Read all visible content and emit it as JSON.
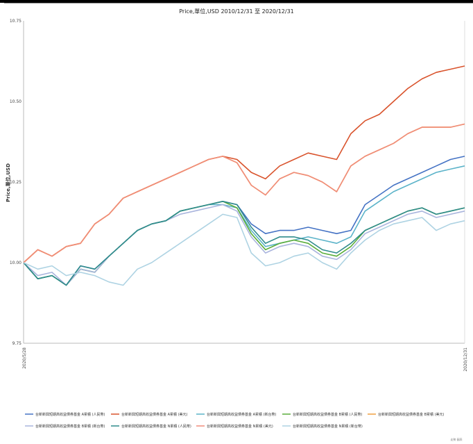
{
  "chart_data": {
    "type": "line",
    "title": "Price,單位,USD 2010/12/31 至 2020/12/31",
    "ylabel": "Price,單位,USD",
    "ylim": [
      9.75,
      10.75
    ],
    "yticks": [
      "9.75",
      "10.00",
      "10.25",
      "10.50",
      "10.75"
    ],
    "x_start_label": "2020/5/28",
    "x_end_label": "2020/12/31",
    "n_points": 32,
    "grid": false,
    "legend_placement": "bottom",
    "series": [
      {
        "name": "台新新興短期高收益債券基金 A累積 (人民幣)",
        "color": "#4472c4",
        "values": [
          10.0,
          9.95,
          9.96,
          9.93,
          9.99,
          9.98,
          10.02,
          10.06,
          10.1,
          10.12,
          10.13,
          10.16,
          10.17,
          10.18,
          10.19,
          10.18,
          10.12,
          10.09,
          10.1,
          10.1,
          10.11,
          10.1,
          10.09,
          10.1,
          10.18,
          10.21,
          10.24,
          10.26,
          10.28,
          10.3,
          10.32,
          10.33
        ]
      },
      {
        "name": "台新新興短期高收益債券基金 A累積 (美元)",
        "color": "#d9532c",
        "values": [
          10.0,
          10.04,
          10.02,
          10.05,
          10.06,
          10.12,
          10.15,
          10.2,
          10.22,
          10.24,
          10.26,
          10.28,
          10.3,
          10.32,
          10.33,
          10.32,
          10.28,
          10.26,
          10.3,
          10.32,
          10.34,
          10.33,
          10.32,
          10.4,
          10.44,
          10.46,
          10.5,
          10.54,
          10.57,
          10.59,
          10.6,
          10.61
        ]
      },
      {
        "name": "台新新興短期高收益債券基金 A累積 (新台幣)",
        "color": "#5bb3c9",
        "values": [
          10.0,
          9.95,
          9.96,
          9.93,
          9.98,
          9.97,
          10.02,
          10.06,
          10.1,
          10.12,
          10.13,
          10.16,
          10.17,
          10.18,
          10.18,
          10.17,
          10.1,
          10.05,
          10.06,
          10.07,
          10.08,
          10.07,
          10.06,
          10.08,
          10.16,
          10.19,
          10.22,
          10.24,
          10.26,
          10.28,
          10.29,
          10.3
        ]
      },
      {
        "name": "台新新興短期高收益債券基金 B累積 (人民幣)",
        "color": "#5aad3a",
        "values": [
          10.0,
          9.95,
          9.96,
          9.93,
          9.98,
          9.97,
          10.02,
          10.06,
          10.1,
          10.12,
          10.13,
          10.16,
          10.17,
          10.18,
          10.19,
          10.17,
          10.09,
          10.04,
          10.06,
          10.07,
          10.06,
          10.03,
          10.02,
          10.05,
          10.1,
          10.12,
          10.14,
          10.16,
          10.17,
          10.15,
          10.16,
          10.17
        ]
      },
      {
        "name": "台新新興短期高收益債券基金 B累積 (美元)",
        "color": "#f0a040",
        "values": [
          10.0,
          10.04,
          10.02,
          10.05,
          10.06,
          10.12,
          10.15,
          10.2,
          10.22,
          10.24,
          10.26,
          10.28,
          10.3,
          10.32,
          10.33,
          10.31,
          10.24,
          10.21,
          10.26,
          10.28,
          10.27,
          10.25,
          10.22,
          10.3,
          10.33,
          10.35,
          10.37,
          10.4,
          10.42,
          10.42,
          10.42,
          10.43
        ]
      },
      {
        "name": "台新新興短期高收益債券基金 B累積 (新台幣)",
        "color": "#a9b4dd",
        "values": [
          10.0,
          9.96,
          9.97,
          9.93,
          9.98,
          9.97,
          10.02,
          10.06,
          10.1,
          10.12,
          10.13,
          10.15,
          10.16,
          10.17,
          10.18,
          10.16,
          10.08,
          10.03,
          10.05,
          10.06,
          10.05,
          10.02,
          10.01,
          10.04,
          10.09,
          10.11,
          10.13,
          10.15,
          10.16,
          10.14,
          10.15,
          10.16
        ]
      },
      {
        "name": "台新新興短期高收益債券基金 N累積 (人民幣)",
        "color": "#2e8b8b",
        "values": [
          10.0,
          9.95,
          9.96,
          9.93,
          9.99,
          9.98,
          10.02,
          10.06,
          10.1,
          10.12,
          10.13,
          10.16,
          10.17,
          10.18,
          10.19,
          10.18,
          10.11,
          10.06,
          10.08,
          10.08,
          10.07,
          10.04,
          10.03,
          10.06,
          10.1,
          10.12,
          10.14,
          10.16,
          10.17,
          10.15,
          10.16,
          10.17
        ]
      },
      {
        "name": "台新新興短期高收益債券基金 N累積 (美元)",
        "color": "#f08c7a",
        "values": [
          10.0,
          10.04,
          10.02,
          10.05,
          10.06,
          10.12,
          10.15,
          10.2,
          10.22,
          10.24,
          10.26,
          10.28,
          10.3,
          10.32,
          10.33,
          10.31,
          10.24,
          10.21,
          10.26,
          10.28,
          10.27,
          10.25,
          10.22,
          10.3,
          10.33,
          10.35,
          10.37,
          10.4,
          10.42,
          10.42,
          10.42,
          10.43
        ]
      },
      {
        "name": "台新新興短期高收益債券基金 N累積 (新台幣)",
        "color": "#aed3e3",
        "values": [
          10.0,
          9.98,
          9.99,
          9.96,
          9.97,
          9.96,
          9.94,
          9.93,
          9.98,
          10.0,
          10.03,
          10.06,
          10.09,
          10.12,
          10.15,
          10.14,
          10.03,
          9.99,
          10.0,
          10.02,
          10.03,
          10.0,
          9.98,
          10.03,
          10.07,
          10.1,
          10.12,
          10.13,
          10.14,
          10.1,
          10.12,
          10.13
        ]
      }
    ],
    "footnote": "走勢 圖表"
  }
}
